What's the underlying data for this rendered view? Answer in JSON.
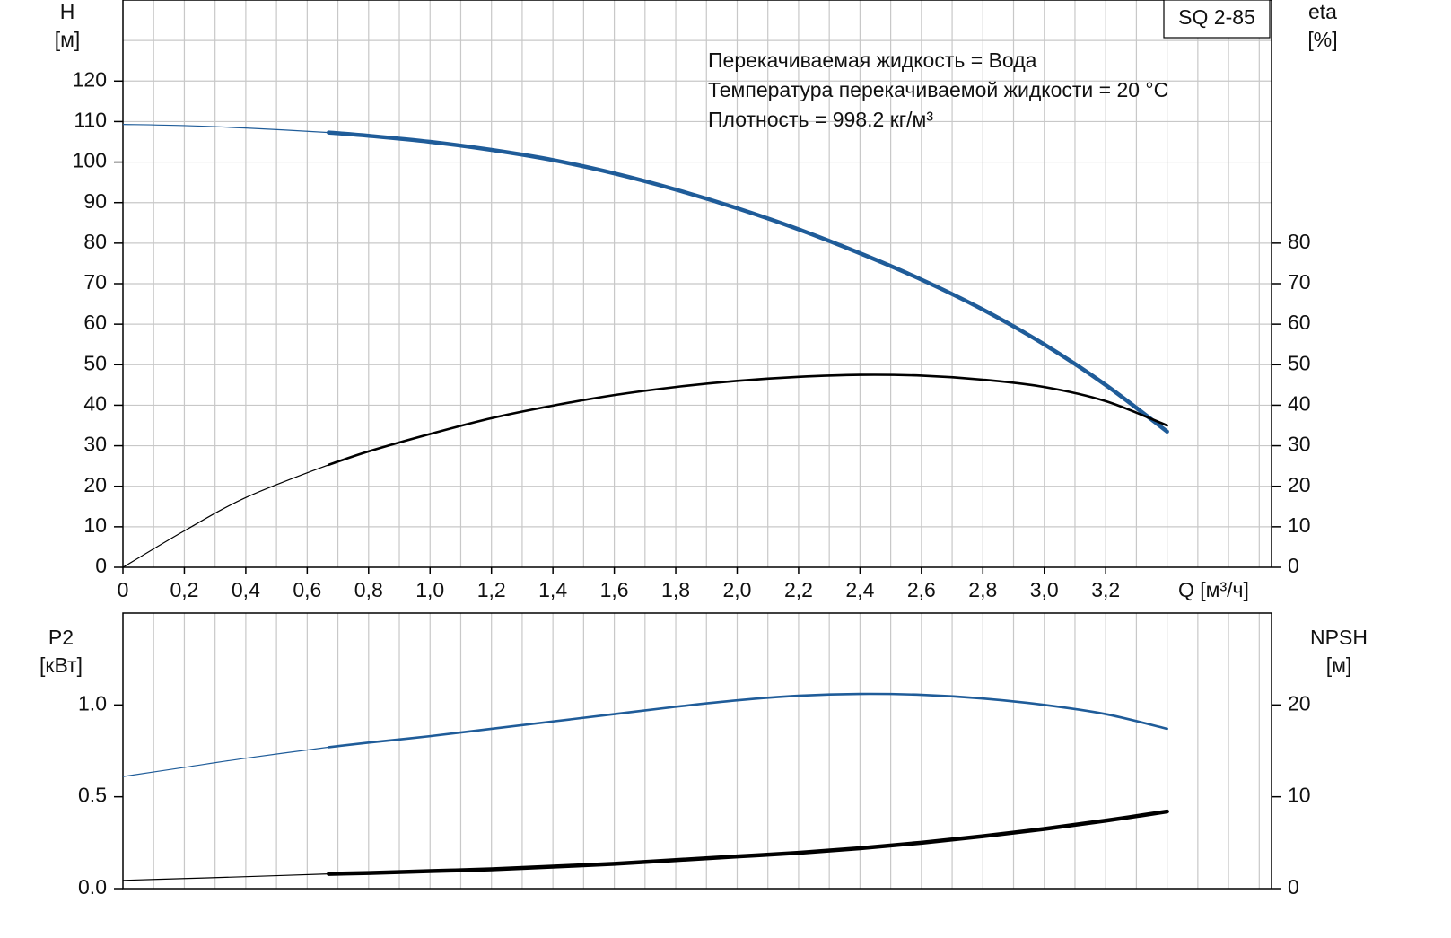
{
  "chart_data": [
    {
      "type": "line",
      "annotations": [
        "Перекачиваемая жидкость = Вода",
        "Температура перекачиваемой жидкости = 20 °C",
        "Плотность = 998.2 кг/м³"
      ],
      "model": "SQ 2-85",
      "y_label": [
        "H",
        "[м]"
      ],
      "y2_label": [
        "eta",
        "[%]"
      ],
      "x_label": "Q [м³/ч]",
      "x": [
        0,
        0.2,
        0.4,
        0.67,
        0.8,
        1.0,
        1.2,
        1.4,
        1.6,
        1.8,
        2.0,
        2.2,
        2.4,
        2.6,
        2.8,
        3.0,
        3.2,
        3.4
      ],
      "bold_from_x": 0.67,
      "series": [
        {
          "color": "#1f5c99",
          "values": [
            109.3,
            109.0,
            108.4,
            107.3,
            106.5,
            105.0,
            103.0,
            100.5,
            97.2,
            93.2,
            88.6,
            83.4,
            77.5,
            71.0,
            63.6,
            55.0,
            45.0,
            33.5
          ]
        },
        {
          "color": "#000000",
          "axis": "y2",
          "values": [
            0,
            9,
            17.2,
            25.3,
            28.6,
            32.9,
            36.8,
            39.9,
            42.5,
            44.5,
            46.0,
            47.0,
            47.5,
            47.3,
            46.3,
            44.5,
            41.0,
            35.0
          ]
        }
      ],
      "xlim": [
        0,
        3.74
      ],
      "xticks": [
        0,
        {
          "value": 0.2,
          "label": "0,2"
        },
        {
          "value": 0.4,
          "label": "0,4"
        },
        {
          "value": 0.6,
          "label": "0,6"
        },
        {
          "value": 0.8,
          "label": "0,8"
        },
        {
          "value": 1.0,
          "label": "1,0"
        },
        {
          "value": 1.2,
          "label": "1,2"
        },
        {
          "value": 1.4,
          "label": "1,4"
        },
        {
          "value": 1.6,
          "label": "1,6"
        },
        {
          "value": 1.8,
          "label": "1,8"
        },
        {
          "value": 2.0,
          "label": "2,0"
        },
        {
          "value": 2.2,
          "label": "2,2"
        },
        {
          "value": 2.4,
          "label": "2,4"
        },
        {
          "value": 2.6,
          "label": "2,6"
        },
        {
          "value": 2.8,
          "label": "2,8"
        },
        {
          "value": 3.0,
          "label": "3,0"
        },
        {
          "value": 3.2,
          "label": "3,2"
        }
      ],
      "xgrid": [
        0.1,
        0.2,
        0.3,
        0.4,
        0.5,
        0.6,
        0.7,
        0.8,
        0.9,
        1.0,
        1.1,
        1.2,
        1.3,
        1.4,
        1.5,
        1.6,
        1.7,
        1.8,
        1.9,
        2.0,
        2.1,
        2.2,
        2.3,
        2.4,
        2.5,
        2.6,
        2.7,
        2.8,
        2.9,
        3.0,
        3.1,
        3.2,
        3.3,
        3.4,
        3.5,
        3.6,
        3.7
      ],
      "ylim": [
        0,
        140
      ],
      "yticks": [
        0,
        10,
        20,
        30,
        40,
        50,
        60,
        70,
        80,
        90,
        100,
        110,
        120
      ],
      "ygrid": [
        10,
        20,
        30,
        40,
        50,
        60,
        70,
        80,
        90,
        100,
        110,
        120,
        130
      ],
      "y2lim": [
        0,
        140
      ],
      "y2ticks": [
        0,
        10,
        20,
        30,
        40,
        50,
        60,
        70,
        80
      ]
    },
    {
      "type": "line",
      "y_label": [
        "P2",
        "[кВт]"
      ],
      "y2_label": [
        "NPSH",
        "[м]"
      ],
      "x": [
        0,
        0.2,
        0.4,
        0.67,
        0.8,
        1.0,
        1.2,
        1.4,
        1.6,
        1.8,
        2.0,
        2.2,
        2.4,
        2.6,
        2.8,
        3.0,
        3.2,
        3.4
      ],
      "bold_from_x": 0.67,
      "series": [
        {
          "color": "#1f5c99",
          "values": [
            0.61,
            0.66,
            0.71,
            0.77,
            0.795,
            0.83,
            0.87,
            0.91,
            0.95,
            0.99,
            1.025,
            1.05,
            1.06,
            1.055,
            1.035,
            1.0,
            0.95,
            0.87
          ]
        },
        {
          "color": "#000000",
          "axis": "y2",
          "values": [
            0.9,
            1.1,
            1.3,
            1.6,
            1.7,
            1.9,
            2.1,
            2.4,
            2.7,
            3.1,
            3.5,
            3.9,
            4.4,
            5.0,
            5.7,
            6.5,
            7.4,
            8.4
          ]
        }
      ],
      "xlim": [
        0,
        3.74
      ],
      "xgrid": [
        0.1,
        0.2,
        0.3,
        0.4,
        0.5,
        0.6,
        0.7,
        0.8,
        0.9,
        1.0,
        1.1,
        1.2,
        1.3,
        1.4,
        1.5,
        1.6,
        1.7,
        1.8,
        1.9,
        2.0,
        2.1,
        2.2,
        2.3,
        2.4,
        2.5,
        2.6,
        2.7,
        2.8,
        2.9,
        3.0,
        3.1,
        3.2,
        3.3,
        3.4,
        3.5,
        3.6,
        3.7
      ],
      "ylim": [
        0,
        1.5
      ],
      "yticks": [
        {
          "value": 0,
          "label": "0.0"
        },
        {
          "value": 0.5,
          "label": "0.5"
        },
        {
          "value": 1.0,
          "label": "1.0"
        }
      ],
      "y2lim": [
        0,
        30
      ],
      "y2ticks": [
        0,
        10,
        20
      ]
    }
  ]
}
